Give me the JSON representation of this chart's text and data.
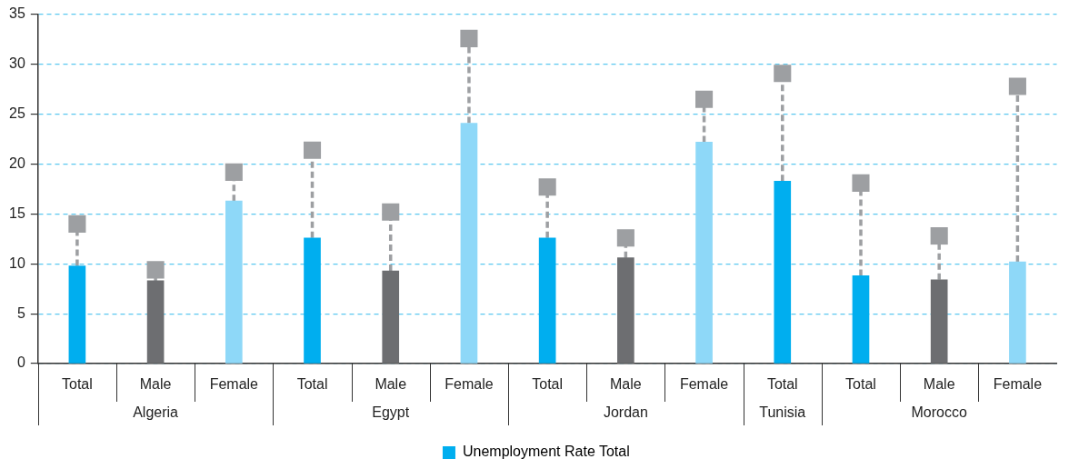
{
  "chart_data": {
    "type": "bar",
    "categories": [
      "Total",
      "Male",
      "Female",
      "Total",
      "Male",
      "Female",
      "Total",
      "Male",
      "Female",
      "Total",
      "Total",
      "Male",
      "Female"
    ],
    "annotations": [
      "Algeria",
      "Egypt",
      "Jordan",
      "Tunisia",
      "Morocco"
    ],
    "series": [
      {
        "name": "Unemployment Rate Total",
        "color": "#00aeef",
        "colors": [
          "#00aeef",
          "#6d6e71",
          "#8ed8f8",
          "#00aeef",
          "#6d6e71",
          "#8ed8f8",
          "#00aeef",
          "#6d6e71",
          "#8ed8f8",
          "#00aeef",
          "#00aeef",
          "#6d6e71",
          "#8ed8f8"
        ],
        "values": [
          9.8,
          8.3,
          16.3,
          12.6,
          9.3,
          24.1,
          12.6,
          10.6,
          22.2,
          18.3,
          8.8,
          8.4,
          10.2
        ]
      },
      {
        "type": "scatter",
        "color": "#9d9fa2",
        "marker": "square",
        "line_style": "dashed",
        "values": [
          14.0,
          9.4,
          19.2,
          21.4,
          15.2,
          32.6,
          17.7,
          12.6,
          26.5,
          29.1,
          18.1,
          12.8,
          27.8
        ],
        "errors": [
          [
            9.8,
            14.0
          ],
          [
            8.3,
            9.4
          ],
          [
            16.3,
            19.2
          ],
          [
            12.6,
            21.4
          ],
          [
            9.3,
            15.2
          ],
          [
            24.1,
            32.6
          ],
          [
            12.6,
            17.7
          ],
          [
            10.6,
            12.6
          ],
          [
            22.2,
            26.5
          ],
          [
            18.3,
            29.1
          ],
          [
            8.8,
            18.1
          ],
          [
            8.4,
            12.8
          ],
          [
            10.2,
            27.8
          ]
        ]
      }
    ],
    "ylim": [
      0,
      35
    ],
    "yticks": [
      0,
      5,
      10,
      15,
      20,
      25,
      30,
      35
    ],
    "grid": "y",
    "legend": "bottom"
  }
}
